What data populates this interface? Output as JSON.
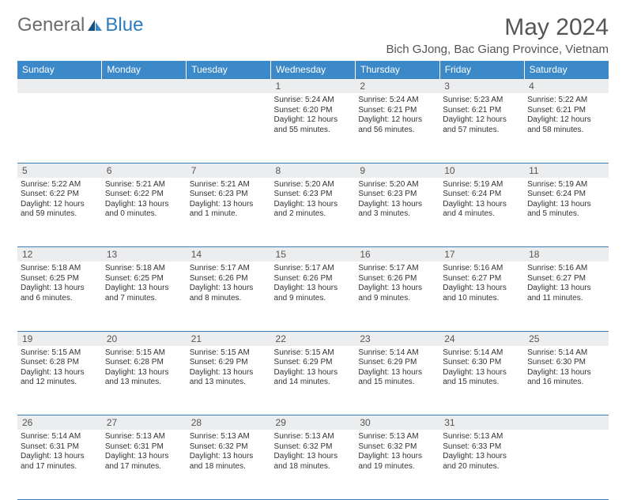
{
  "logo": {
    "text_general": "General",
    "text_blue": "Blue"
  },
  "title": "May 2024",
  "location": "Bich GJong, Bac Giang Province, Vietnam",
  "colors": {
    "header_bg": "#3b89c9",
    "header_text": "#ffffff",
    "daynum_bg": "#ecedef",
    "border": "#3b7db8",
    "logo_general": "#6b6b6b",
    "logo_blue": "#2b7bbf"
  },
  "days_of_week": [
    "Sunday",
    "Monday",
    "Tuesday",
    "Wednesday",
    "Thursday",
    "Friday",
    "Saturday"
  ],
  "weeks": [
    {
      "nums": [
        "",
        "",
        "",
        "1",
        "2",
        "3",
        "4"
      ],
      "cells": [
        null,
        null,
        null,
        {
          "sunrise": "Sunrise: 5:24 AM",
          "sunset": "Sunset: 6:20 PM",
          "daylight": "Daylight: 12 hours and 55 minutes."
        },
        {
          "sunrise": "Sunrise: 5:24 AM",
          "sunset": "Sunset: 6:21 PM",
          "daylight": "Daylight: 12 hours and 56 minutes."
        },
        {
          "sunrise": "Sunrise: 5:23 AM",
          "sunset": "Sunset: 6:21 PM",
          "daylight": "Daylight: 12 hours and 57 minutes."
        },
        {
          "sunrise": "Sunrise: 5:22 AM",
          "sunset": "Sunset: 6:21 PM",
          "daylight": "Daylight: 12 hours and 58 minutes."
        }
      ]
    },
    {
      "nums": [
        "5",
        "6",
        "7",
        "8",
        "9",
        "10",
        "11"
      ],
      "cells": [
        {
          "sunrise": "Sunrise: 5:22 AM",
          "sunset": "Sunset: 6:22 PM",
          "daylight": "Daylight: 12 hours and 59 minutes."
        },
        {
          "sunrise": "Sunrise: 5:21 AM",
          "sunset": "Sunset: 6:22 PM",
          "daylight": "Daylight: 13 hours and 0 minutes."
        },
        {
          "sunrise": "Sunrise: 5:21 AM",
          "sunset": "Sunset: 6:23 PM",
          "daylight": "Daylight: 13 hours and 1 minute."
        },
        {
          "sunrise": "Sunrise: 5:20 AM",
          "sunset": "Sunset: 6:23 PM",
          "daylight": "Daylight: 13 hours and 2 minutes."
        },
        {
          "sunrise": "Sunrise: 5:20 AM",
          "sunset": "Sunset: 6:23 PM",
          "daylight": "Daylight: 13 hours and 3 minutes."
        },
        {
          "sunrise": "Sunrise: 5:19 AM",
          "sunset": "Sunset: 6:24 PM",
          "daylight": "Daylight: 13 hours and 4 minutes."
        },
        {
          "sunrise": "Sunrise: 5:19 AM",
          "sunset": "Sunset: 6:24 PM",
          "daylight": "Daylight: 13 hours and 5 minutes."
        }
      ]
    },
    {
      "nums": [
        "12",
        "13",
        "14",
        "15",
        "16",
        "17",
        "18"
      ],
      "cells": [
        {
          "sunrise": "Sunrise: 5:18 AM",
          "sunset": "Sunset: 6:25 PM",
          "daylight": "Daylight: 13 hours and 6 minutes."
        },
        {
          "sunrise": "Sunrise: 5:18 AM",
          "sunset": "Sunset: 6:25 PM",
          "daylight": "Daylight: 13 hours and 7 minutes."
        },
        {
          "sunrise": "Sunrise: 5:17 AM",
          "sunset": "Sunset: 6:26 PM",
          "daylight": "Daylight: 13 hours and 8 minutes."
        },
        {
          "sunrise": "Sunrise: 5:17 AM",
          "sunset": "Sunset: 6:26 PM",
          "daylight": "Daylight: 13 hours and 9 minutes."
        },
        {
          "sunrise": "Sunrise: 5:17 AM",
          "sunset": "Sunset: 6:26 PM",
          "daylight": "Daylight: 13 hours and 9 minutes."
        },
        {
          "sunrise": "Sunrise: 5:16 AM",
          "sunset": "Sunset: 6:27 PM",
          "daylight": "Daylight: 13 hours and 10 minutes."
        },
        {
          "sunrise": "Sunrise: 5:16 AM",
          "sunset": "Sunset: 6:27 PM",
          "daylight": "Daylight: 13 hours and 11 minutes."
        }
      ]
    },
    {
      "nums": [
        "19",
        "20",
        "21",
        "22",
        "23",
        "24",
        "25"
      ],
      "cells": [
        {
          "sunrise": "Sunrise: 5:15 AM",
          "sunset": "Sunset: 6:28 PM",
          "daylight": "Daylight: 13 hours and 12 minutes."
        },
        {
          "sunrise": "Sunrise: 5:15 AM",
          "sunset": "Sunset: 6:28 PM",
          "daylight": "Daylight: 13 hours and 13 minutes."
        },
        {
          "sunrise": "Sunrise: 5:15 AM",
          "sunset": "Sunset: 6:29 PM",
          "daylight": "Daylight: 13 hours and 13 minutes."
        },
        {
          "sunrise": "Sunrise: 5:15 AM",
          "sunset": "Sunset: 6:29 PM",
          "daylight": "Daylight: 13 hours and 14 minutes."
        },
        {
          "sunrise": "Sunrise: 5:14 AM",
          "sunset": "Sunset: 6:29 PM",
          "daylight": "Daylight: 13 hours and 15 minutes."
        },
        {
          "sunrise": "Sunrise: 5:14 AM",
          "sunset": "Sunset: 6:30 PM",
          "daylight": "Daylight: 13 hours and 15 minutes."
        },
        {
          "sunrise": "Sunrise: 5:14 AM",
          "sunset": "Sunset: 6:30 PM",
          "daylight": "Daylight: 13 hours and 16 minutes."
        }
      ]
    },
    {
      "nums": [
        "26",
        "27",
        "28",
        "29",
        "30",
        "31",
        ""
      ],
      "cells": [
        {
          "sunrise": "Sunrise: 5:14 AM",
          "sunset": "Sunset: 6:31 PM",
          "daylight": "Daylight: 13 hours and 17 minutes."
        },
        {
          "sunrise": "Sunrise: 5:13 AM",
          "sunset": "Sunset: 6:31 PM",
          "daylight": "Daylight: 13 hours and 17 minutes."
        },
        {
          "sunrise": "Sunrise: 5:13 AM",
          "sunset": "Sunset: 6:32 PM",
          "daylight": "Daylight: 13 hours and 18 minutes."
        },
        {
          "sunrise": "Sunrise: 5:13 AM",
          "sunset": "Sunset: 6:32 PM",
          "daylight": "Daylight: 13 hours and 18 minutes."
        },
        {
          "sunrise": "Sunrise: 5:13 AM",
          "sunset": "Sunset: 6:32 PM",
          "daylight": "Daylight: 13 hours and 19 minutes."
        },
        {
          "sunrise": "Sunrise: 5:13 AM",
          "sunset": "Sunset: 6:33 PM",
          "daylight": "Daylight: 13 hours and 20 minutes."
        },
        null
      ]
    }
  ]
}
